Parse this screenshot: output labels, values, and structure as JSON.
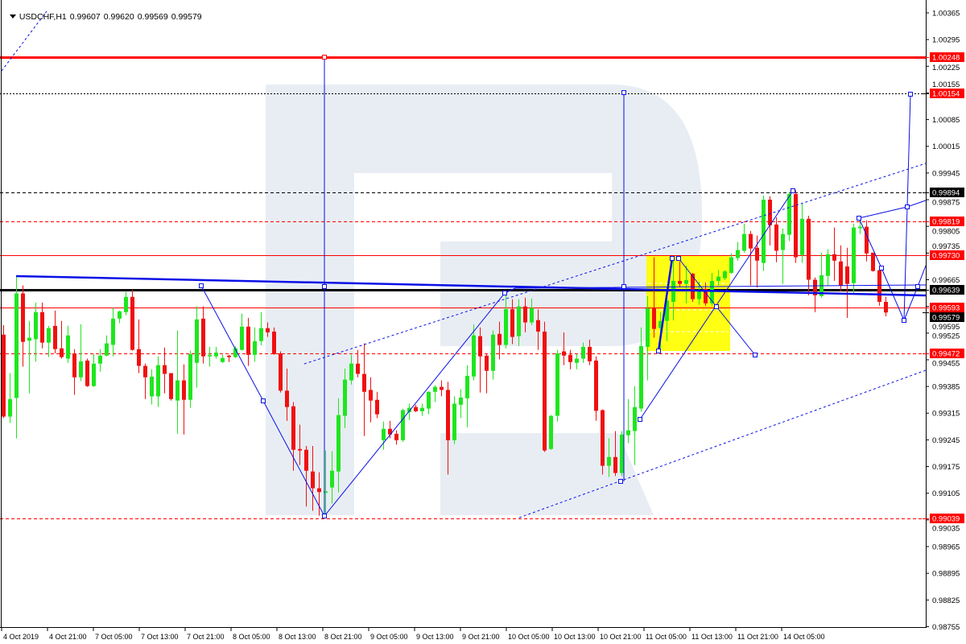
{
  "header": {
    "symbol_timeframe": "USDCHF,H1",
    "open": "0.99607",
    "high": "0.99620",
    "low": "0.99569",
    "close": "0.99579"
  },
  "chart_data": {
    "type": "candlestick",
    "symbol": "USDCHF",
    "timeframe": "H1",
    "ylim": [
      0.98735,
      1.004
    ],
    "grid": false,
    "colors": {
      "bull": "#1ee61e",
      "bear": "#f01010",
      "watermark": "#e8edf4",
      "annotation": "#0a10e6",
      "zone": "#ffff00"
    },
    "y_ticks": [
      "1.00365",
      "1.00295",
      "1.00225",
      "1.00155",
      "1.00085",
      "1.00015",
      "0.99945",
      "0.99875",
      "0.99805",
      "0.99735",
      "0.99665",
      "0.99595",
      "0.99525",
      "0.99455",
      "0.99385",
      "0.99315",
      "0.99245",
      "0.99175",
      "0.99105",
      "0.99035",
      "0.98965",
      "0.98895",
      "0.98825",
      "0.98755"
    ],
    "x_labels": [
      "4 Oct 2019",
      "4 Oct 21:00",
      "7 Oct 05:00",
      "7 Oct 13:00",
      "7 Oct 21:00",
      "8 Oct 05:00",
      "8 Oct 13:00",
      "8 Oct 21:00",
      "9 Oct 05:00",
      "9 Oct 13:00",
      "9 Oct 21:00",
      "10 Oct 05:00",
      "10 Oct 13:00",
      "10 Oct 21:00",
      "11 Oct 05:00",
      "11 Oct 13:00",
      "11 Oct 21:00",
      "14 Oct 05:00"
    ],
    "levels": [
      {
        "price": 1.00248,
        "label": "1.00248",
        "color": "#ff0000",
        "style": "solid-thick"
      },
      {
        "price": 1.00154,
        "label": "1.00154",
        "color": "#000000",
        "style": "dotted",
        "label_bg": "#ff0000"
      },
      {
        "price": 0.99894,
        "label": "0.99894",
        "color": "#000000",
        "style": "dashed"
      },
      {
        "price": 0.99819,
        "label": "0.99819",
        "color": "#ff0000",
        "style": "dashed"
      },
      {
        "price": 0.9973,
        "label": "0.99730",
        "color": "#ff0000",
        "style": "solid"
      },
      {
        "price": 0.99639,
        "label": "0.99639",
        "color": "#000000",
        "style": "solid-thick"
      },
      {
        "price": 0.99593,
        "label": "0.99593",
        "color": "#ff0000",
        "style": "solid"
      },
      {
        "price": 0.99579,
        "label": "0.99579",
        "color": "#000000",
        "style": "none"
      },
      {
        "price": 0.99472,
        "label": "0.99472",
        "color": "#ff0000",
        "style": "dashed"
      },
      {
        "price": 0.99039,
        "label": "0.99039",
        "color": "#ff0000",
        "style": "dashed"
      }
    ],
    "candles": [
      [
        0.99521,
        0.99546,
        0.99302,
        0.99306
      ],
      [
        0.99306,
        0.9942,
        0.99289,
        0.99352
      ],
      [
        0.99355,
        0.99675,
        0.99249,
        0.99629
      ],
      [
        0.99629,
        0.9965,
        0.99437,
        0.99502
      ],
      [
        0.99505,
        0.99557,
        0.99367,
        0.99513
      ],
      [
        0.99509,
        0.99605,
        0.9945,
        0.9958
      ],
      [
        0.9958,
        0.99605,
        0.99485,
        0.995
      ],
      [
        0.995,
        0.99544,
        0.99462,
        0.99538
      ],
      [
        0.99544,
        0.99584,
        0.99472,
        0.99483
      ],
      [
        0.99485,
        0.99557,
        0.99458,
        0.99462
      ],
      [
        0.99458,
        0.99544,
        0.99447,
        0.99519
      ],
      [
        0.99472,
        0.99483,
        0.99363,
        0.99409
      ],
      [
        0.99409,
        0.99548,
        0.99399,
        0.99451
      ],
      [
        0.99453,
        0.99458,
        0.99384,
        0.99386
      ],
      [
        0.99386,
        0.9947,
        0.99384,
        0.99445
      ],
      [
        0.99445,
        0.99483,
        0.99424,
        0.99466
      ],
      [
        0.99466,
        0.99519,
        0.99464,
        0.99498
      ],
      [
        0.99494,
        0.99591,
        0.99464,
        0.99563
      ],
      [
        0.99563,
        0.99584,
        0.99551,
        0.99582
      ],
      [
        0.9958,
        0.99633,
        0.99572,
        0.9962
      ],
      [
        0.9962,
        0.99639,
        0.99479,
        0.99481
      ],
      [
        0.99483,
        0.99561,
        0.9942,
        0.99439
      ],
      [
        0.99439,
        0.99445,
        0.99352,
        0.99409
      ],
      [
        0.99359,
        0.9943,
        0.99338,
        0.99411
      ],
      [
        0.99359,
        0.99464,
        0.99331,
        0.99441
      ],
      [
        0.99441,
        0.99487,
        0.99367,
        0.99418
      ],
      [
        0.9942,
        0.9942,
        0.99348,
        0.99352
      ],
      [
        0.99348,
        0.99532,
        0.99261,
        0.99401
      ],
      [
        0.99401,
        0.99443,
        0.99259,
        0.9935
      ],
      [
        0.9935,
        0.99479,
        0.99329,
        0.9947
      ],
      [
        0.99447,
        0.99595,
        0.99382,
        0.99561
      ],
      [
        0.99563,
        0.99595,
        0.99445,
        0.99464
      ],
      [
        0.99464,
        0.99489,
        0.99437,
        0.99468
      ],
      [
        0.99464,
        0.99489,
        0.99458,
        0.99474
      ],
      [
        0.99449,
        0.99468,
        0.99447,
        0.9946
      ],
      [
        0.99466,
        0.99468,
        0.99449,
        0.99462
      ],
      [
        0.99462,
        0.99491,
        0.9946,
        0.99485
      ],
      [
        0.99481,
        0.99576,
        0.99479,
        0.99542
      ],
      [
        0.99542,
        0.99565,
        0.99439,
        0.99468
      ],
      [
        0.99468,
        0.9954,
        0.9945,
        0.99504
      ],
      [
        0.99504,
        0.9958,
        0.99493,
        0.99538
      ],
      [
        0.99538,
        0.99553,
        0.99515,
        0.99527
      ],
      [
        0.99529,
        0.9954,
        0.99468,
        0.9947
      ],
      [
        0.99472,
        0.99477,
        0.99369,
        0.99374
      ],
      [
        0.99374,
        0.99432,
        0.99295,
        0.99331
      ],
      [
        0.99333,
        0.99344,
        0.99164,
        0.99219
      ],
      [
        0.99221,
        0.99285,
        0.99179,
        0.99217
      ],
      [
        0.99219,
        0.99229,
        0.9907,
        0.99164
      ],
      [
        0.99162,
        0.99229,
        0.99059,
        0.99118
      ],
      [
        0.99118,
        0.9916,
        0.99046,
        0.99108
      ],
      [
        0.99106,
        0.99217,
        0.9904,
        0.9911
      ],
      [
        0.9912,
        0.99215,
        0.99078,
        0.99164
      ],
      [
        0.99162,
        0.99354,
        0.99107,
        0.9931
      ],
      [
        0.99308,
        0.99432,
        0.99276,
        0.99403
      ],
      [
        0.99401,
        0.99468,
        0.9939,
        0.99445
      ],
      [
        0.99445,
        0.99481,
        0.99409,
        0.99418
      ],
      [
        0.99418,
        0.99498,
        0.99255,
        0.99371
      ],
      [
        0.99376,
        0.99409,
        0.99291,
        0.99348
      ],
      [
        0.9935,
        0.99371,
        0.99302,
        0.99312
      ],
      [
        0.99244,
        0.99293,
        0.99219,
        0.99274
      ],
      [
        0.99274,
        0.99295,
        0.99249,
        0.99259
      ],
      [
        0.99261,
        0.9927,
        0.99232,
        0.99244
      ],
      [
        0.99244,
        0.99327,
        0.9924,
        0.99323
      ],
      [
        0.99318,
        0.9934,
        0.99297,
        0.99329
      ],
      [
        0.99331,
        0.99337,
        0.99318,
        0.9932
      ],
      [
        0.9932,
        0.9934,
        0.99308,
        0.99329
      ],
      [
        0.99327,
        0.99373,
        0.99312,
        0.99371
      ],
      [
        0.99371,
        0.99388,
        0.99344,
        0.99384
      ],
      [
        0.99384,
        0.99401,
        0.99359,
        0.99376
      ],
      [
        0.99376,
        0.99397,
        0.99154,
        0.99244
      ],
      [
        0.99244,
        0.99359,
        0.99234,
        0.9934
      ],
      [
        0.99337,
        0.99378,
        0.99302,
        0.99356
      ],
      [
        0.99354,
        0.99441,
        0.99278,
        0.99413
      ],
      [
        0.99411,
        0.99548,
        0.99401,
        0.99519
      ],
      [
        0.99517,
        0.9954,
        0.99369,
        0.99464
      ],
      [
        0.99466,
        0.9947,
        0.99367,
        0.99426
      ],
      [
        0.99426,
        0.99532,
        0.99403,
        0.99521
      ],
      [
        0.99523,
        0.99555,
        0.99456,
        0.99494
      ],
      [
        0.99494,
        0.99631,
        0.99485,
        0.99588
      ],
      [
        0.99588,
        0.99614,
        0.99496,
        0.99515
      ],
      [
        0.99517,
        0.99614,
        0.99491,
        0.99595
      ],
      [
        0.99595,
        0.99618,
        0.99527,
        0.99553
      ],
      [
        0.99553,
        0.99616,
        0.99546,
        0.99591
      ],
      [
        0.99559,
        0.99587,
        0.99481,
        0.99529
      ],
      [
        0.99529,
        0.99555,
        0.99213,
        0.99217
      ],
      [
        0.99221,
        0.9931,
        0.99219,
        0.99308
      ],
      [
        0.99308,
        0.99481,
        0.99293,
        0.99472
      ],
      [
        0.99477,
        0.99527,
        0.99441,
        0.99466
      ],
      [
        0.99468,
        0.99481,
        0.9943,
        0.99449
      ],
      [
        0.99447,
        0.9947,
        0.9943,
        0.99458
      ],
      [
        0.99458,
        0.995,
        0.99447,
        0.99489
      ],
      [
        0.99489,
        0.99508,
        0.99441,
        0.99451
      ],
      [
        0.99453,
        0.99464,
        0.99295,
        0.99321
      ],
      [
        0.99323,
        0.99325,
        0.99154,
        0.99177
      ],
      [
        0.99177,
        0.99249,
        0.99148,
        0.992
      ],
      [
        0.992,
        0.99268,
        0.9915,
        0.99158
      ],
      [
        0.99158,
        0.99268,
        0.9915,
        0.99259
      ],
      [
        0.99257,
        0.99352,
        0.99236,
        0.9927
      ],
      [
        0.99268,
        0.99386,
        0.99179,
        0.99331
      ],
      [
        0.99327,
        0.9954,
        0.99319,
        0.99491
      ],
      [
        0.99489,
        0.99622,
        0.99401,
        0.9959
      ],
      [
        0.9959,
        0.99724,
        0.99513,
        0.99536
      ],
      [
        0.99538,
        0.9958,
        0.99481,
        0.99557
      ],
      [
        0.99557,
        0.99622,
        0.99504,
        0.9961
      ],
      [
        0.99607,
        0.99719,
        0.99559,
        0.99662
      ],
      [
        0.99662,
        0.99713,
        0.99645,
        0.99654
      ],
      [
        0.99654,
        0.99702,
        0.99603,
        0.99664
      ],
      [
        0.99681,
        0.99683,
        0.99607,
        0.99614
      ],
      [
        0.99614,
        0.9966,
        0.99599,
        0.99635
      ],
      [
        0.99641,
        0.99658,
        0.99597,
        0.99603
      ],
      [
        0.99603,
        0.99683,
        0.99597,
        0.99662
      ],
      [
        0.99662,
        0.9969,
        0.9965,
        0.99673
      ],
      [
        0.99669,
        0.9969,
        0.99664,
        0.99687
      ],
      [
        0.99683,
        0.99734,
        0.99681,
        0.99724
      ],
      [
        0.99722,
        0.99764,
        0.99715,
        0.99743
      ],
      [
        0.99741,
        0.99812,
        0.99736,
        0.99785
      ],
      [
        0.99785,
        0.99793,
        0.9965,
        0.99747
      ],
      [
        0.99749,
        0.99781,
        0.99645,
        0.99715
      ],
      [
        0.99709,
        0.99886,
        0.99688,
        0.99875
      ],
      [
        0.99875,
        0.99884,
        0.99755,
        0.99808
      ],
      [
        0.9981,
        0.99829,
        0.99711,
        0.99741
      ],
      [
        0.99743,
        0.998,
        0.99654,
        0.99785
      ],
      [
        0.99783,
        0.99896,
        0.99766,
        0.9989
      ],
      [
        0.9989,
        0.999,
        0.99709,
        0.99724
      ],
      [
        0.9973,
        0.99865,
        0.99709,
        0.99825
      ],
      [
        0.99825,
        0.99833,
        0.99624,
        0.99665
      ],
      [
        0.99665,
        0.99671,
        0.9958,
        0.99624
      ],
      [
        0.99622,
        0.99736,
        0.99618,
        0.99677
      ],
      [
        0.99675,
        0.99745,
        0.9965,
        0.99732
      ],
      [
        0.99732,
        0.99802,
        0.99662,
        0.99715
      ],
      [
        0.99713,
        0.99755,
        0.99635,
        0.9965
      ],
      [
        0.997,
        0.99749,
        0.99565,
        0.99654
      ],
      [
        0.99656,
        0.99812,
        0.9963,
        0.99802
      ],
      [
        0.998,
        0.99825,
        0.99785,
        0.99804
      ],
      [
        0.99804,
        0.99821,
        0.99713,
        0.99734
      ],
      [
        0.99736,
        0.99736,
        0.99686,
        0.99688
      ],
      [
        0.9969,
        0.99702,
        0.99597,
        0.99607
      ],
      [
        0.99607,
        0.9962,
        0.99569,
        0.99579
      ]
    ]
  }
}
